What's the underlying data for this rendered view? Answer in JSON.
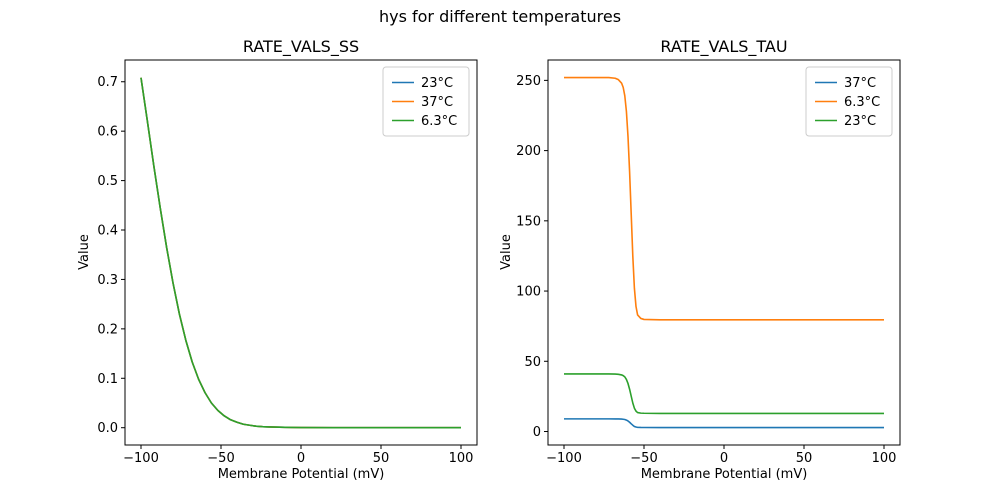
{
  "figure": {
    "title": "hys for different temperatures",
    "background": "#ffffff"
  },
  "palette": {
    "blue": "#1f77b4",
    "orange": "#ff7f0e",
    "green": "#2ca02c",
    "axes": "#000000",
    "legend_border": "#cccccc"
  },
  "chart_data": [
    {
      "type": "line",
      "title": "RATE_VALS_SS",
      "xlabel": "Membrane Potential (mV)",
      "ylabel": "Value",
      "xlim": [
        -110,
        110
      ],
      "ylim": [
        -0.035,
        0.744
      ],
      "xticks": [
        -100,
        -50,
        0,
        50,
        100
      ],
      "xtick_labels": [
        "−100",
        "−50",
        "0",
        "50",
        "100"
      ],
      "yticks": [
        0,
        0.1,
        0.2,
        0.3,
        0.4,
        0.5,
        0.6,
        0.7
      ],
      "ytick_labels": [
        "0.0",
        "0.1",
        "0.2",
        "0.3",
        "0.4",
        "0.5",
        "0.6",
        "0.7"
      ],
      "grid": false,
      "legend_position": "upper right",
      "legend": [
        {
          "label": "23°C",
          "color": "#1f77b4"
        },
        {
          "label": "37°C",
          "color": "#ff7f0e"
        },
        {
          "label": "6.3°C",
          "color": "#2ca02c"
        }
      ],
      "x": [
        -100,
        -96,
        -92,
        -88,
        -84,
        -80,
        -76,
        -72,
        -68,
        -64,
        -60,
        -56,
        -52,
        -48,
        -44,
        -40,
        -36,
        -32,
        -28,
        -24,
        -20,
        -10,
        0,
        20,
        40,
        60,
        80,
        100
      ],
      "series": [
        {
          "name": "23°C",
          "color": "#1f77b4",
          "y": [
            0.708,
            0.62,
            0.53,
            0.445,
            0.365,
            0.293,
            0.23,
            0.177,
            0.133,
            0.098,
            0.071,
            0.05,
            0.035,
            0.024,
            0.016,
            0.011,
            0.007,
            0.005,
            0.003,
            0.002,
            0.0015,
            0.0007,
            0.0003,
            0.0001,
            0.0001,
            0,
            0,
            0
          ]
        },
        {
          "name": "37°C",
          "color": "#ff7f0e",
          "y": [
            0.708,
            0.62,
            0.53,
            0.445,
            0.365,
            0.293,
            0.23,
            0.177,
            0.133,
            0.098,
            0.071,
            0.05,
            0.035,
            0.024,
            0.016,
            0.011,
            0.007,
            0.005,
            0.003,
            0.002,
            0.0015,
            0.0007,
            0.0003,
            0.0001,
            0.0001,
            0,
            0,
            0
          ]
        },
        {
          "name": "6.3°C",
          "color": "#2ca02c",
          "y": [
            0.708,
            0.62,
            0.53,
            0.445,
            0.365,
            0.293,
            0.23,
            0.177,
            0.133,
            0.098,
            0.071,
            0.05,
            0.035,
            0.024,
            0.016,
            0.011,
            0.007,
            0.005,
            0.003,
            0.002,
            0.0015,
            0.0007,
            0.0003,
            0.0001,
            0.0001,
            0,
            0,
            0
          ]
        }
      ]
    },
    {
      "type": "line",
      "title": "RATE_VALS_TAU",
      "xlabel": "Membrane Potential (mV)",
      "ylabel": "Value",
      "xlim": [
        -110,
        110
      ],
      "ylim": [
        -9.6,
        264.5
      ],
      "xticks": [
        -100,
        -50,
        0,
        50,
        100
      ],
      "xtick_labels": [
        "−100",
        "−50",
        "0",
        "50",
        "100"
      ],
      "yticks": [
        0,
        50,
        100,
        150,
        200,
        250
      ],
      "ytick_labels": [
        "0",
        "50",
        "100",
        "150",
        "200",
        "250"
      ],
      "grid": false,
      "legend_position": "upper right",
      "legend": [
        {
          "label": "37°C",
          "color": "#1f77b4"
        },
        {
          "label": "6.3°C",
          "color": "#ff7f0e"
        },
        {
          "label": "23°C",
          "color": "#2ca02c"
        }
      ],
      "x": [
        -100,
        -90,
        -80,
        -72,
        -68,
        -66,
        -64,
        -63,
        -62,
        -61,
        -60,
        -59,
        -58,
        -57,
        -56,
        -55,
        -54,
        -52,
        -50,
        -40,
        -20,
        0,
        25,
        50,
        75,
        100
      ],
      "series": [
        {
          "name": "37°C",
          "color": "#1f77b4",
          "y": [
            9,
            9,
            9,
            9,
            8.98,
            8.94,
            8.85,
            8.74,
            8.54,
            8.14,
            7.5,
            6.6,
            5.5,
            4.5,
            3.6,
            3.2,
            2.95,
            2.87,
            2.85,
            2.84,
            2.84,
            2.84,
            2.84,
            2.84,
            2.84,
            2.84
          ]
        },
        {
          "name": "6.3°C",
          "color": "#ff7f0e",
          "y": [
            252,
            252,
            252,
            252,
            251.5,
            250.5,
            248,
            245,
            239,
            228,
            210,
            185,
            155,
            125,
            102,
            89,
            83,
            80.5,
            79.8,
            79.5,
            79.5,
            79.5,
            79.5,
            79.5,
            79.5,
            79.5
          ]
        },
        {
          "name": "23°C",
          "color": "#2ca02c",
          "y": [
            41,
            41,
            41,
            41,
            40.9,
            40.7,
            40.3,
            39.8,
            38.9,
            37.1,
            34.2,
            30.1,
            25.2,
            20.3,
            16.6,
            14.5,
            13.5,
            13.1,
            13,
            12.9,
            12.9,
            12.9,
            12.9,
            12.9,
            12.9,
            12.9
          ]
        }
      ]
    }
  ]
}
